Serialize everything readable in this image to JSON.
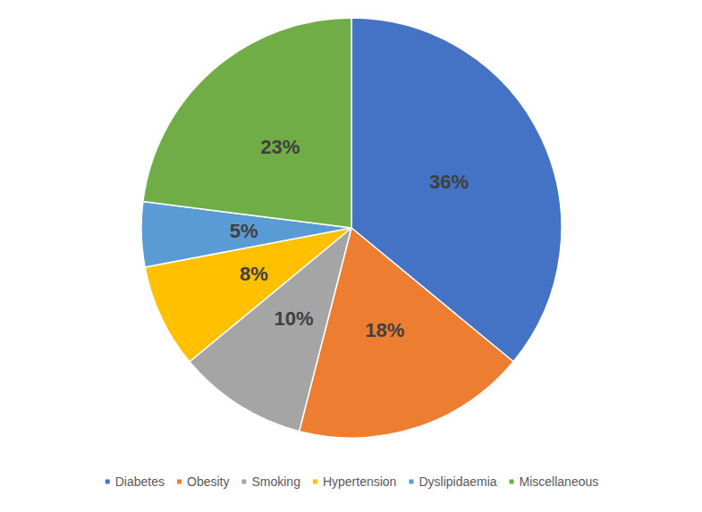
{
  "chart_data": {
    "type": "pie",
    "categories": [
      "Diabetes",
      "Obesity",
      "Smoking",
      "Hypertension",
      "Dyslipidaemia",
      "Miscellaneous"
    ],
    "values": [
      36,
      18,
      10,
      8,
      5,
      23
    ],
    "value_labels": [
      "36%",
      "18%",
      "10%",
      "8%",
      "5%",
      "23%"
    ],
    "colors": [
      "#4472c4",
      "#ed7d31",
      "#a5a5a5",
      "#ffc000",
      "#5b9bd5",
      "#70ad47"
    ],
    "data_labels": true,
    "legend": "bottom"
  }
}
